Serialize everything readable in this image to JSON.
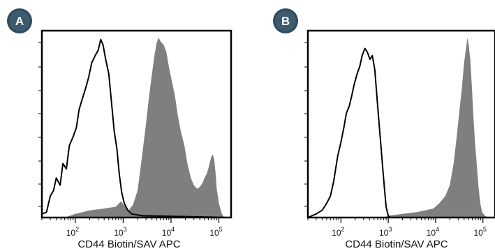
{
  "chart_data": [
    {
      "type": "area",
      "panel_label": "A",
      "xlabel": "CD44 Biotin/SAV APC",
      "x_scale": "log",
      "xlim": [
        20,
        180000
      ],
      "ylim": [
        0,
        1
      ],
      "x_ticks": [
        {
          "base": "10",
          "exp": "2",
          "value": 100
        },
        {
          "base": "10",
          "exp": "3",
          "value": 1000
        },
        {
          "base": "10",
          "exp": "4",
          "value": 10000
        },
        {
          "base": "10",
          "exp": "5",
          "value": 100000
        }
      ],
      "series": [
        {
          "style": "outline",
          "color": "#000000",
          "points": [
            [
              20,
              0.02
            ],
            [
              25,
              0.03
            ],
            [
              30,
              0.12
            ],
            [
              35,
              0.15
            ],
            [
              40,
              0.22
            ],
            [
              48,
              0.18
            ],
            [
              55,
              0.3
            ],
            [
              65,
              0.27
            ],
            [
              75,
              0.4
            ],
            [
              90,
              0.45
            ],
            [
              105,
              0.5
            ],
            [
              120,
              0.6
            ],
            [
              140,
              0.66
            ],
            [
              165,
              0.72
            ],
            [
              190,
              0.78
            ],
            [
              220,
              0.86
            ],
            [
              260,
              0.9
            ],
            [
              300,
              0.93
            ],
            [
              340,
              0.99
            ],
            [
              380,
              0.96
            ],
            [
              430,
              0.88
            ],
            [
              500,
              0.8
            ],
            [
              580,
              0.62
            ],
            [
              650,
              0.48
            ],
            [
              740,
              0.38
            ],
            [
              830,
              0.24
            ],
            [
              930,
              0.14
            ],
            [
              1050,
              0.08
            ],
            [
              1250,
              0.04
            ],
            [
              1500,
              0.02
            ],
            [
              2500,
              0.01
            ],
            [
              180000,
              0.0
            ]
          ]
        },
        {
          "style": "filled",
          "color": "#7f7f7f",
          "points": [
            [
              20,
              0.0
            ],
            [
              60,
              0.0
            ],
            [
              100,
              0.02
            ],
            [
              200,
              0.04
            ],
            [
              400,
              0.05
            ],
            [
              700,
              0.06
            ],
            [
              900,
              0.09
            ],
            [
              1100,
              0.06
            ],
            [
              1300,
              0.04
            ],
            [
              1600,
              0.07
            ],
            [
              2000,
              0.15
            ],
            [
              2500,
              0.35
            ],
            [
              3000,
              0.52
            ],
            [
              3500,
              0.68
            ],
            [
              4000,
              0.8
            ],
            [
              4500,
              0.9
            ],
            [
              5000,
              0.97
            ],
            [
              5500,
              1.0
            ],
            [
              6000,
              0.98
            ],
            [
              7000,
              0.96
            ],
            [
              8000,
              0.92
            ],
            [
              9000,
              0.84
            ],
            [
              10000,
              0.78
            ],
            [
              12000,
              0.68
            ],
            [
              14000,
              0.56
            ],
            [
              16000,
              0.48
            ],
            [
              19000,
              0.4
            ],
            [
              22000,
              0.3
            ],
            [
              26000,
              0.22
            ],
            [
              30000,
              0.18
            ],
            [
              35000,
              0.16
            ],
            [
              40000,
              0.17
            ],
            [
              45000,
              0.19
            ],
            [
              50000,
              0.22
            ],
            [
              55000,
              0.24
            ],
            [
              60000,
              0.27
            ],
            [
              65000,
              0.31
            ],
            [
              70000,
              0.34
            ],
            [
              75000,
              0.35
            ],
            [
              80000,
              0.32
            ],
            [
              85000,
              0.25
            ],
            [
              90000,
              0.16
            ],
            [
              100000,
              0.08
            ],
            [
              115000,
              0.02
            ],
            [
              130000,
              0.0
            ],
            [
              180000,
              0.0
            ]
          ]
        }
      ]
    },
    {
      "type": "area",
      "panel_label": "B",
      "xlabel": "CD44 Biotin/SAV APC",
      "x_scale": "log",
      "xlim": [
        20,
        180000
      ],
      "ylim": [
        0,
        1
      ],
      "x_ticks": [
        {
          "base": "10",
          "exp": "2",
          "value": 100
        },
        {
          "base": "10",
          "exp": "3",
          "value": 1000
        },
        {
          "base": "10",
          "exp": "4",
          "value": 10000
        },
        {
          "base": "10",
          "exp": "5",
          "value": 100000
        }
      ],
      "series": [
        {
          "style": "outline",
          "color": "#000000",
          "points": [
            [
              20,
              0.0
            ],
            [
              30,
              0.02
            ],
            [
              40,
              0.04
            ],
            [
              50,
              0.08
            ],
            [
              60,
              0.12
            ],
            [
              70,
              0.2
            ],
            [
              85,
              0.34
            ],
            [
              100,
              0.42
            ],
            [
              115,
              0.5
            ],
            [
              130,
              0.58
            ],
            [
              150,
              0.62
            ],
            [
              170,
              0.68
            ],
            [
              190,
              0.74
            ],
            [
              220,
              0.8
            ],
            [
              250,
              0.84
            ],
            [
              280,
              0.9
            ],
            [
              320,
              0.94
            ],
            [
              360,
              0.92
            ],
            [
              410,
              0.88
            ],
            [
              460,
              0.9
            ],
            [
              520,
              0.82
            ],
            [
              580,
              0.66
            ],
            [
              640,
              0.52
            ],
            [
              700,
              0.4
            ],
            [
              760,
              0.28
            ],
            [
              830,
              0.16
            ],
            [
              900,
              0.06
            ],
            [
              1000,
              0.01
            ],
            [
              1100,
              0.0
            ],
            [
              180000,
              0.0
            ]
          ]
        },
        {
          "style": "filled",
          "color": "#7f7f7f",
          "points": [
            [
              20,
              0.0
            ],
            [
              300,
              0.0
            ],
            [
              800,
              0.0
            ],
            [
              1000,
              0.01
            ],
            [
              2000,
              0.02
            ],
            [
              4000,
              0.03
            ],
            [
              6000,
              0.04
            ],
            [
              9000,
              0.05
            ],
            [
              12000,
              0.08
            ],
            [
              16000,
              0.12
            ],
            [
              20000,
              0.18
            ],
            [
              24000,
              0.3
            ],
            [
              28000,
              0.45
            ],
            [
              32000,
              0.6
            ],
            [
              36000,
              0.72
            ],
            [
              40000,
              0.86
            ],
            [
              44000,
              0.94
            ],
            [
              47000,
              1.0
            ],
            [
              50000,
              0.96
            ],
            [
              54000,
              0.88
            ],
            [
              58000,
              0.74
            ],
            [
              63000,
              0.56
            ],
            [
              68000,
              0.42
            ],
            [
              74000,
              0.3
            ],
            [
              80000,
              0.18
            ],
            [
              88000,
              0.08
            ],
            [
              96000,
              0.03
            ],
            [
              110000,
              0.01
            ],
            [
              130000,
              0.0
            ],
            [
              180000,
              0.0
            ]
          ]
        }
      ]
    }
  ]
}
